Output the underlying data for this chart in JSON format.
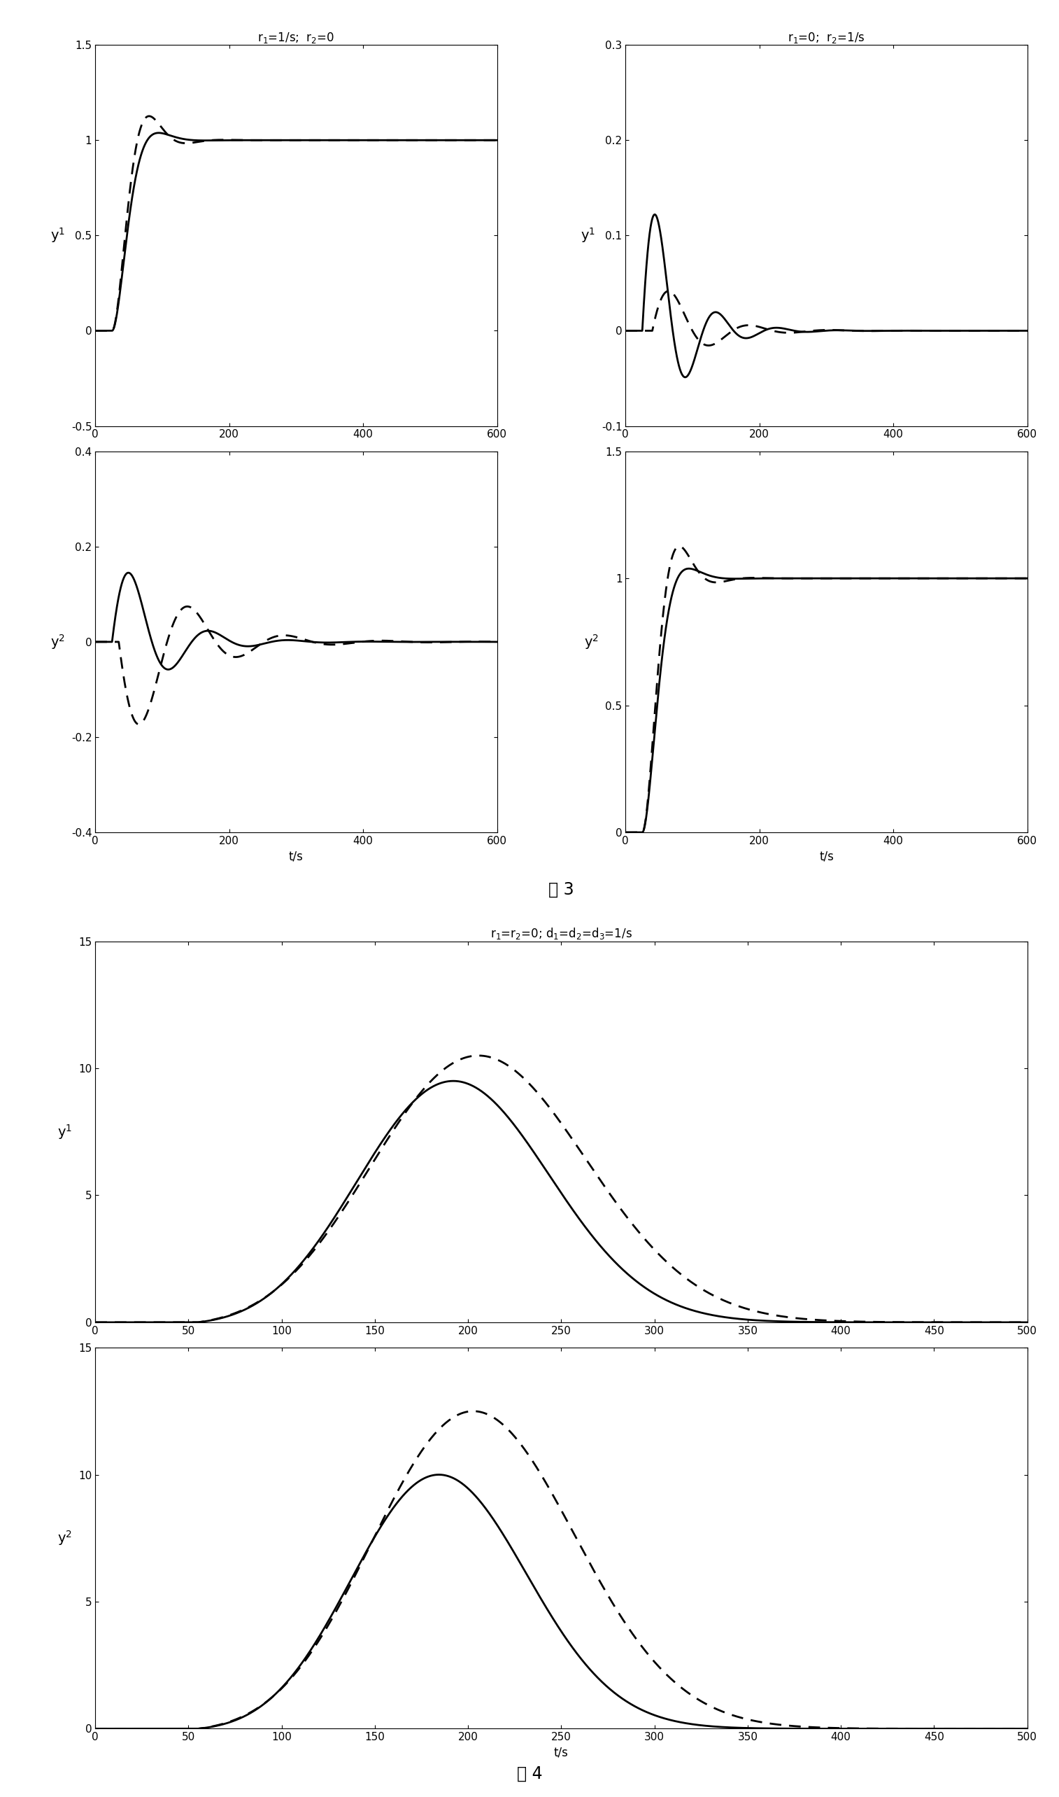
{
  "fig3_caption": "图 3",
  "fig4_caption": "图 4",
  "background": "#ffffff",
  "fig3_tl_title": "r$_1$=1/s;  r$_2$=0",
  "fig3_tr_title": "r$_1$=0;  r$_2$=1/s",
  "fig4_title": "r$_1$=r$_2$=0; d$_1$=d$_2$=d$_3$=1/s"
}
